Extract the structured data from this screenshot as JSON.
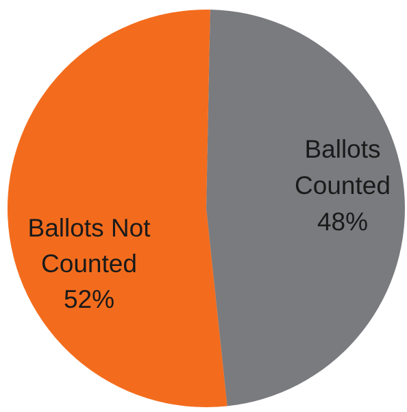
{
  "chart_data": {
    "type": "pie",
    "title": "",
    "slices": [
      {
        "label_lines": [
          "Ballots",
          "Counted"
        ],
        "percent_label": "48%",
        "value": 48,
        "color": "#7a7b7f"
      },
      {
        "label_lines": [
          "Ballots Not",
          "Counted"
        ],
        "percent_label": "52%",
        "value": 52,
        "color": "#f36c1d"
      }
    ]
  }
}
